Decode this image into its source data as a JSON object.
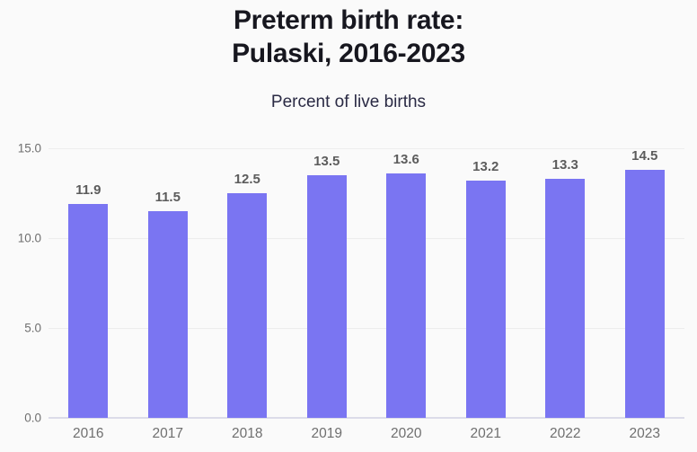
{
  "header": {
    "title": "Preterm birth rate:\nPulaski, 2016-2023",
    "subtitle": "Percent of live births"
  },
  "chart_data": {
    "type": "bar",
    "title": "Preterm birth rate: Pulaski, 2016-2023",
    "subtitle": "Percent of live births",
    "categories": [
      "2016",
      "2017",
      "2018",
      "2019",
      "2020",
      "2021",
      "2022",
      "2023"
    ],
    "values": [
      11.9,
      11.5,
      12.5,
      13.5,
      13.6,
      13.2,
      13.3,
      14.5
    ],
    "xlabel": "",
    "ylabel": "Percent of live births",
    "ylim": [
      0,
      15
    ],
    "yticks": [
      "15.0",
      "10.0",
      "5.0",
      "0.0"
    ],
    "grid": "horizontal",
    "legend": "none",
    "data_labels_shown": true
  },
  "colors": {
    "bg": "#fafafa",
    "title": "#17171f",
    "subtitle": "#2a2a44",
    "bar": "#7a75f2",
    "grid": "#ededed",
    "baseline": "#dcdce9",
    "tick": "#6f6f6f",
    "value": "#5c5c5c"
  }
}
